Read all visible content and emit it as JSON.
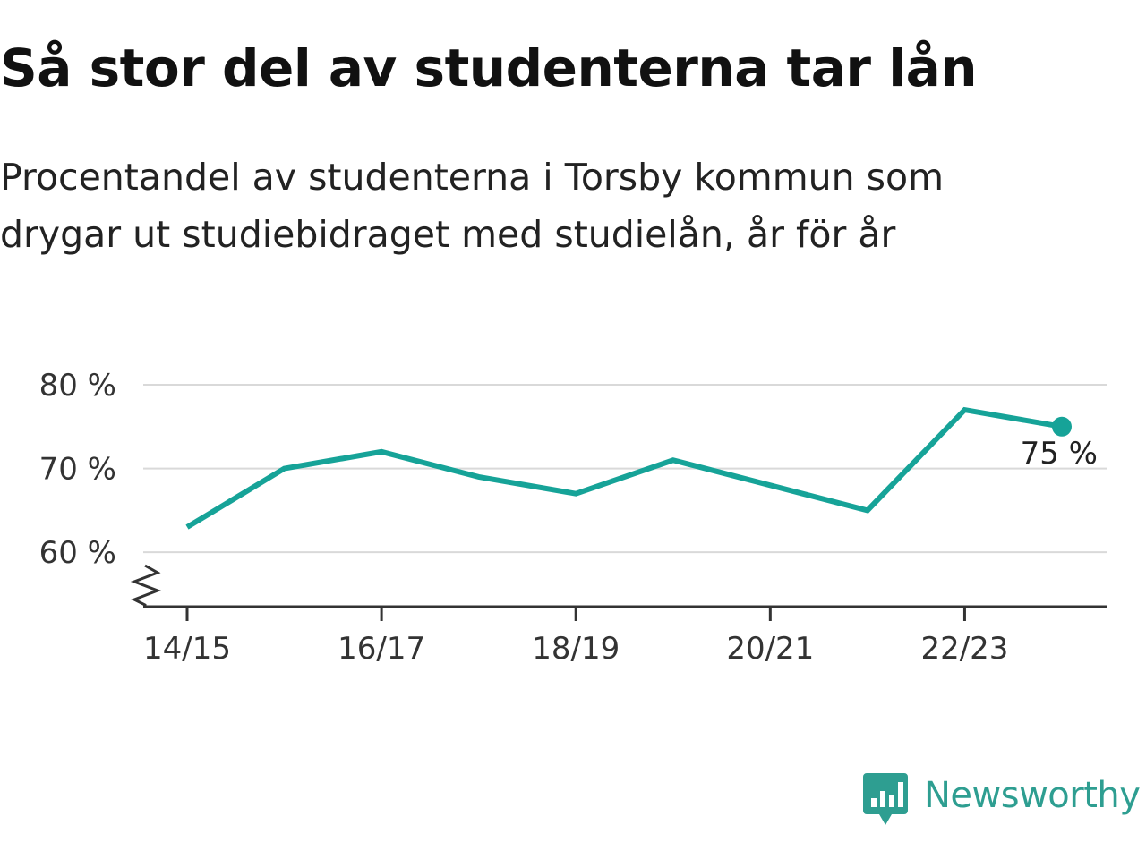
{
  "title": "Så stor del av studenterna tar lån",
  "subtitle": "Procentandel av studenterna i Torsby kommun som drygar ut studiebidraget med studielån, år för år",
  "brand": {
    "name": "Newsworthy",
    "icon": "newsworthy-logo-icon",
    "color": "#2e9e91"
  },
  "colors": {
    "line": "#16a398",
    "grid": "#d9d9d9",
    "axis": "#333333"
  },
  "chart_data": {
    "type": "line",
    "x": [
      "14/15",
      "15/16",
      "16/17",
      "17/18",
      "18/19",
      "19/20",
      "20/21",
      "21/22",
      "22/23",
      "23/24"
    ],
    "x_tick_labels": [
      "14/15",
      "16/17",
      "18/19",
      "20/21",
      "22/23"
    ],
    "series": [
      {
        "values": [
          63,
          70,
          72,
          69,
          67,
          71,
          68,
          65,
          77,
          75
        ]
      }
    ],
    "y_ticks": [
      60,
      70,
      80
    ],
    "y_tick_labels": [
      "60 %",
      "70 %",
      "80 %"
    ],
    "ylim": [
      53.5,
      80
    ],
    "y_axis_break": true,
    "grid": true,
    "end_label": "75 %",
    "legend": "none"
  }
}
